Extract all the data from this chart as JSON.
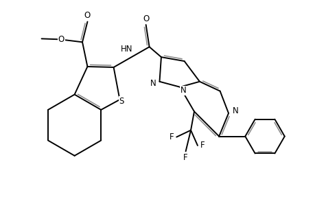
{
  "background_color": "#ffffff",
  "line_color": "#000000",
  "double_bond_color": "#888888",
  "lw": 1.4,
  "dlw": 1.1,
  "doffset": 0.055,
  "figsize": [
    4.6,
    3.0
  ],
  "dpi": 100,
  "xlim": [
    0,
    9.2
  ],
  "ylim": [
    0,
    6.0
  ]
}
